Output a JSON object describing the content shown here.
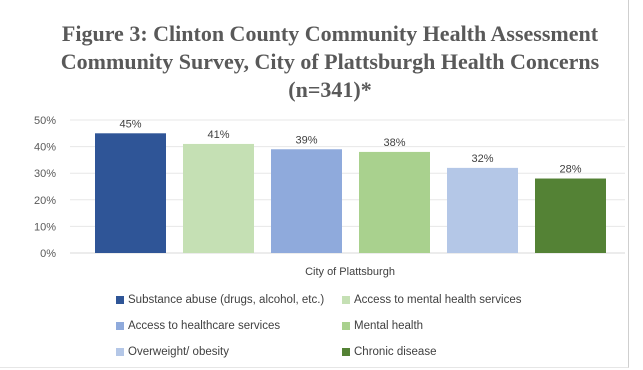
{
  "chart_data": {
    "type": "bar",
    "title": "Figure 3: Clinton County Community Health Assessment Community Survey, City of Plattsburgh Health Concerns (n=341)*",
    "category": "City of Plattsburgh",
    "ylim": [
      0,
      50
    ],
    "yticks": [
      "0%",
      "10%",
      "20%",
      "30%",
      "40%",
      "50%"
    ],
    "grid": true,
    "legend_position": "bottom",
    "series": [
      {
        "name": "Substance abuse (drugs, alcohol, etc.)",
        "value": 45,
        "label": "45%",
        "color": "#2f5597"
      },
      {
        "name": "Access to mental health services",
        "value": 41,
        "label": "41%",
        "color": "#c5e0b4"
      },
      {
        "name": "Access to healthcare services",
        "value": 39,
        "label": "39%",
        "color": "#8faadc"
      },
      {
        "name": "Mental health",
        "value": 38,
        "label": "38%",
        "color": "#a9d18e"
      },
      {
        "name": "Overweight/ obesity",
        "value": 32,
        "label": "32%",
        "color": "#b4c7e7"
      },
      {
        "name": "Chronic disease",
        "value": 28,
        "label": "28%",
        "color": "#548235"
      }
    ]
  }
}
